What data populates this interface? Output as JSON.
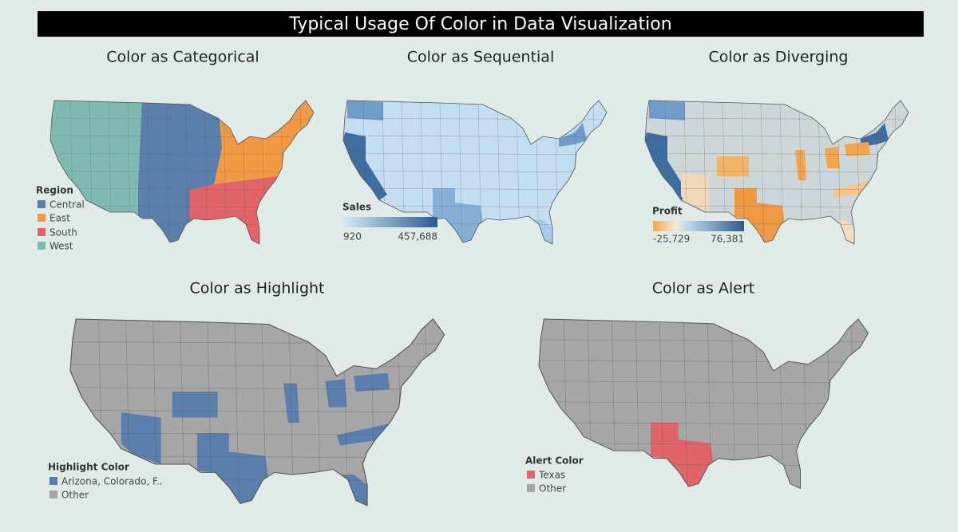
{
  "header": {
    "title": "Typical Usage Of Color in Data Visualization"
  },
  "panels": [
    {
      "title": "Color as Categorical",
      "legend": {
        "title": "Region",
        "items": [
          "Central",
          "East",
          "South",
          "West"
        ]
      }
    },
    {
      "title": "Color as Sequential",
      "legend": {
        "title": "Sales",
        "min_label": "920",
        "max_label": "457,688"
      }
    },
    {
      "title": "Color as Diverging",
      "legend": {
        "title": "Profit",
        "min_label": "-25,729",
        "max_label": "76,381"
      }
    },
    {
      "title": "Color as Highlight",
      "legend": {
        "title": "Highlight Color",
        "items": [
          "Arizona, Colorado, F..",
          "Other"
        ]
      }
    },
    {
      "title": "Color as Alert",
      "legend": {
        "title": "Alert Color",
        "items": [
          "Texas",
          "Other"
        ]
      }
    }
  ]
}
